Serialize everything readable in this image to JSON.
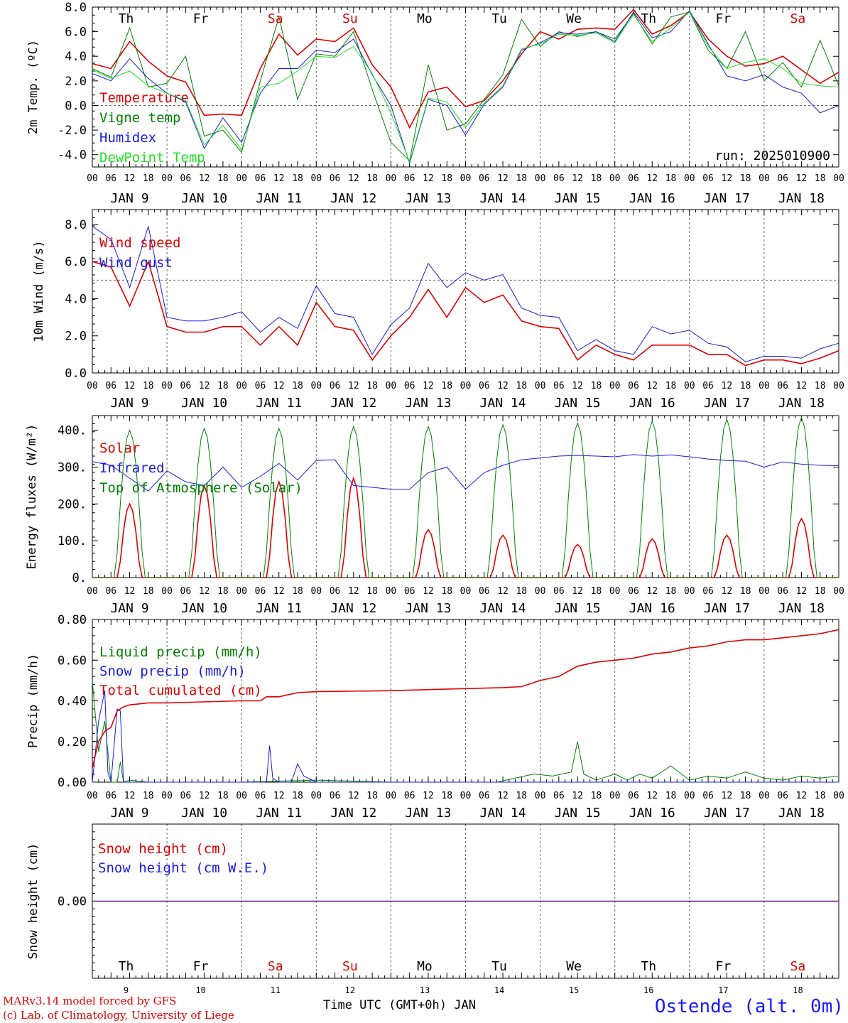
{
  "colors": {
    "red": "#e00000",
    "green": "#008000",
    "blue": "#1a1ae0",
    "lightgreen": "#20e020",
    "weekend": "#e00000",
    "text": "#000000"
  },
  "footer": {
    "model": "MARv3.14 model forced by GFS",
    "credit": "(c) Lab. of Climatology, University of Liege",
    "time_label": "Time UTC (GMT+0h) JAN",
    "station": "Ostende (alt. 0m)"
  },
  "hour_ticks": [
    "00",
    "06",
    "12",
    "18"
  ],
  "date_labels": [
    "JAN  9",
    "JAN 10",
    "JAN 11",
    "JAN 12",
    "JAN 13",
    "JAN 14",
    "JAN 15",
    "JAN 16",
    "JAN 17",
    "JAN 18"
  ],
  "days": [
    {
      "abbr": "Th",
      "num": "9",
      "weekend": false
    },
    {
      "abbr": "Fr",
      "num": "10",
      "weekend": false
    },
    {
      "abbr": "Sa",
      "num": "11",
      "weekend": true
    },
    {
      "abbr": "Su",
      "num": "12",
      "weekend": true
    },
    {
      "abbr": "Mo",
      "num": "13",
      "weekend": false
    },
    {
      "abbr": "Tu",
      "num": "14",
      "weekend": false
    },
    {
      "abbr": "We",
      "num": "15",
      "weekend": false
    },
    {
      "abbr": "Th",
      "num": "16",
      "weekend": false
    },
    {
      "abbr": "Fr",
      "num": "17",
      "weekend": false
    },
    {
      "abbr": "Sa",
      "num": "18",
      "weekend": true
    }
  ],
  "chart_data": [
    {
      "type": "line",
      "ylabel": "2m Temp. (ºC)",
      "ylim": [
        -5,
        8
      ],
      "yticks": [
        "8.0",
        "6.0",
        "4.0",
        "2.0",
        "0.0",
        "-2.0",
        "-4.0"
      ],
      "ref_line": 0,
      "annotation": "run: 2025010900",
      "x_unit": "hours from JAN 9 00 UTC",
      "series": [
        {
          "name": "Temperature",
          "color": "red",
          "x": [
            0,
            6,
            12,
            18,
            24,
            30,
            36,
            42,
            48,
            54,
            60,
            66,
            72,
            78,
            84,
            90,
            96,
            102,
            108,
            114,
            120,
            126,
            132,
            138,
            144,
            150,
            156,
            162,
            168,
            174,
            180,
            186,
            192,
            198,
            204,
            210,
            216,
            222,
            228,
            234,
            240
          ],
          "values": [
            3.4,
            3.0,
            5.2,
            3.6,
            2.4,
            1.9,
            -0.8,
            -0.7,
            -0.8,
            3.0,
            5.8,
            4.1,
            5.4,
            5.2,
            6.3,
            3.3,
            1.5,
            -1.8,
            1.1,
            1.5,
            -0.1,
            0.4,
            2.0,
            4.2,
            6.0,
            5.4,
            6.2,
            6.3,
            6.2,
            7.8,
            5.8,
            6.5,
            7.6,
            5.4,
            4.0,
            3.2,
            3.4,
            4.0,
            2.9,
            1.8,
            2.7
          ]
        },
        {
          "name": "Vigne temp",
          "color": "green",
          "x": [
            0,
            6,
            12,
            18,
            24,
            30,
            36,
            42,
            48,
            54,
            60,
            66,
            72,
            78,
            84,
            90,
            96,
            102,
            108,
            114,
            120,
            126,
            132,
            138,
            144,
            150,
            156,
            162,
            168,
            174,
            180,
            186,
            192,
            198,
            204,
            210,
            216,
            222,
            228,
            234,
            240
          ],
          "values": [
            3.0,
            2.3,
            6.3,
            1.5,
            1.8,
            4.0,
            -2.5,
            -2.0,
            -3.8,
            2.0,
            7.2,
            0.5,
            4.2,
            4.0,
            6.0,
            1.3,
            -3.0,
            -4.5,
            3.3,
            -2.0,
            -1.5,
            0.5,
            2.5,
            7.0,
            4.8,
            6.0,
            5.6,
            6.0,
            5.4,
            7.5,
            5.0,
            7.2,
            7.6,
            4.5,
            3.0,
            6.0,
            2.0,
            3.5,
            1.5,
            5.3,
            1.6
          ]
        },
        {
          "name": "Humidex",
          "color": "blue",
          "x": [
            0,
            6,
            12,
            18,
            24,
            30,
            36,
            42,
            48,
            54,
            60,
            66,
            72,
            78,
            84,
            90,
            96,
            102,
            108,
            114,
            120,
            126,
            132,
            138,
            144,
            150,
            156,
            162,
            168,
            174,
            180,
            186,
            192,
            198,
            204,
            210,
            216,
            222,
            228,
            234,
            240
          ],
          "values": [
            2.6,
            2.0,
            3.8,
            2.2,
            1.0,
            0.3,
            -3.5,
            -1.0,
            -3.0,
            1.0,
            3.0,
            3.0,
            4.5,
            4.3,
            5.4,
            2.5,
            0.0,
            -4.7,
            0.5,
            0.0,
            -2.4,
            0.1,
            1.5,
            4.5,
            5.1,
            5.9,
            5.8,
            6.0,
            5.2,
            7.6,
            5.5,
            6.0,
            7.7,
            5.0,
            2.4,
            2.0,
            2.5,
            1.5,
            1.0,
            -0.6,
            0.0
          ]
        },
        {
          "name": "DewPoint Temp",
          "color": "lightgreen",
          "x": [
            0,
            6,
            12,
            18,
            24,
            30,
            36,
            42,
            48,
            54,
            60,
            66,
            72,
            78,
            84,
            90,
            96,
            102,
            108,
            114,
            120,
            126,
            132,
            138,
            144,
            150,
            156,
            162,
            168,
            174,
            180,
            186,
            192,
            198,
            204,
            210,
            216,
            222,
            228,
            234,
            240
          ],
          "values": [
            2.9,
            2.2,
            2.8,
            1.6,
            1.0,
            0.4,
            -3.2,
            -1.6,
            -3.6,
            1.5,
            1.8,
            2.8,
            4.0,
            3.9,
            4.8,
            2.6,
            -0.6,
            -4.6,
            0.6,
            0.3,
            -1.8,
            0.2,
            1.6,
            4.6,
            5.0,
            5.8,
            5.7,
            5.9,
            5.1,
            7.4,
            5.2,
            6.3,
            7.6,
            4.8,
            3.0,
            3.5,
            3.8,
            3.0,
            1.8,
            1.6,
            1.5
          ]
        }
      ]
    },
    {
      "type": "line",
      "ylabel": "10m Wind (m/s)",
      "ylim": [
        0,
        8.8
      ],
      "yticks": [
        "8.0",
        "6.0",
        "4.0",
        "2.0",
        "0.0"
      ],
      "ref_line": 5,
      "x_unit": "hours from JAN 9 00 UTC",
      "series": [
        {
          "name": "Wind speed",
          "color": "red",
          "x": [
            0,
            6,
            12,
            18,
            24,
            30,
            36,
            42,
            48,
            54,
            60,
            66,
            72,
            78,
            84,
            90,
            96,
            102,
            108,
            114,
            120,
            126,
            132,
            138,
            144,
            150,
            156,
            162,
            168,
            174,
            180,
            186,
            192,
            198,
            204,
            210,
            216,
            222,
            228,
            234,
            240
          ],
          "values": [
            6.0,
            5.7,
            3.6,
            6.0,
            2.5,
            2.2,
            2.2,
            2.5,
            2.5,
            1.5,
            2.5,
            1.5,
            3.8,
            2.5,
            2.3,
            0.7,
            2.0,
            3.0,
            4.5,
            3.0,
            4.6,
            3.8,
            4.2,
            2.8,
            2.5,
            2.4,
            0.7,
            1.5,
            1.0,
            0.7,
            1.5,
            1.5,
            1.5,
            1.0,
            1.0,
            0.4,
            0.7,
            0.7,
            0.5,
            0.8,
            1.2
          ]
        },
        {
          "name": "Wind gust",
          "color": "blue",
          "x": [
            0,
            6,
            12,
            18,
            24,
            30,
            36,
            42,
            48,
            54,
            60,
            66,
            72,
            78,
            84,
            90,
            96,
            102,
            108,
            114,
            120,
            126,
            132,
            138,
            144,
            150,
            156,
            162,
            168,
            174,
            180,
            186,
            192,
            198,
            204,
            210,
            216,
            222,
            228,
            234,
            240
          ],
          "values": [
            7.9,
            7.2,
            4.6,
            7.9,
            3.0,
            2.8,
            2.8,
            3.0,
            3.3,
            2.2,
            3.0,
            2.4,
            4.7,
            3.2,
            3.0,
            1.0,
            2.6,
            3.5,
            5.9,
            4.6,
            5.4,
            5.0,
            5.3,
            3.5,
            3.1,
            3.0,
            1.2,
            1.8,
            1.2,
            1.0,
            2.5,
            2.1,
            2.3,
            1.6,
            1.4,
            0.6,
            0.9,
            0.9,
            0.8,
            1.3,
            1.6
          ]
        }
      ]
    },
    {
      "type": "line",
      "ylabel": "Energy fluxes (W/m²)",
      "ylim": [
        0,
        440
      ],
      "yticks": [
        "400.",
        "300.",
        "200.",
        "100.",
        "0."
      ],
      "x_unit": "hours from JAN 9 00 UTC",
      "series": [
        {
          "name": "Solar",
          "color": "red",
          "peaks": [
            200,
            250,
            260,
            270,
            130,
            115,
            90,
            105,
            115,
            160
          ]
        },
        {
          "name": "Infrared",
          "color": "blue",
          "x": [
            0,
            6,
            12,
            18,
            24,
            30,
            36,
            42,
            48,
            54,
            60,
            66,
            72,
            78,
            84,
            90,
            96,
            102,
            108,
            114,
            120,
            126,
            132,
            138,
            144,
            150,
            156,
            162,
            168,
            174,
            180,
            186,
            192,
            198,
            204,
            210,
            216,
            222,
            228,
            234,
            240
          ],
          "values": [
            315,
            305,
            270,
            235,
            290,
            260,
            250,
            300,
            245,
            275,
            310,
            265,
            318,
            320,
            250,
            245,
            240,
            240,
            285,
            300,
            240,
            285,
            305,
            320,
            325,
            330,
            332,
            330,
            328,
            334,
            330,
            333,
            328,
            322,
            318,
            316,
            300,
            314,
            308,
            305,
            304
          ]
        },
        {
          "name": "Top of Atmosphere (Solar)",
          "color": "green",
          "peaks": [
            400,
            405,
            405,
            410,
            410,
            415,
            420,
            425,
            430,
            435
          ]
        }
      ]
    },
    {
      "type": "line",
      "ylabel": "Precip (mm/h)",
      "ylim": [
        0,
        0.8
      ],
      "yticks": [
        "0.80",
        "0.60",
        "0.40",
        "0.20",
        "0.00"
      ],
      "x_unit": "hours from JAN 9 00 UTC",
      "series": [
        {
          "name": "Liquid precip (mm/h)",
          "color": "green",
          "x": [
            0,
            2,
            4,
            6,
            8,
            9,
            10,
            12,
            18,
            24,
            48,
            72,
            96,
            120,
            130,
            136,
            142,
            148,
            154,
            156,
            158,
            162,
            168,
            172,
            176,
            180,
            186,
            192,
            198,
            204,
            210,
            216,
            222,
            228,
            234,
            240
          ],
          "values": [
            0.5,
            0.15,
            0.3,
            0.0,
            0.0,
            0.1,
            0.0,
            0.01,
            0.0,
            0.0,
            0.0,
            0.01,
            0.0,
            0.0,
            0.0,
            0.02,
            0.04,
            0.03,
            0.05,
            0.2,
            0.04,
            0.01,
            0.04,
            0.01,
            0.04,
            0.02,
            0.08,
            0.01,
            0.03,
            0.02,
            0.05,
            0.02,
            0.01,
            0.03,
            0.02,
            0.03
          ]
        },
        {
          "name": "Snow precip (mm/h)",
          "color": "blue",
          "x": [
            0,
            2,
            4,
            5,
            6,
            8,
            9,
            10,
            12,
            24,
            48,
            54,
            56,
            57,
            58,
            60,
            64,
            66,
            68,
            72,
            96,
            240
          ],
          "values": [
            0.0,
            0.3,
            0.45,
            0.05,
            0.0,
            0.36,
            0.35,
            0.0,
            0.0,
            0.0,
            0.0,
            0.0,
            0.0,
            0.18,
            0.02,
            0.0,
            0.0,
            0.09,
            0.03,
            0.0,
            0.0,
            0.0
          ]
        },
        {
          "name": "Total cumulated (cm)",
          "color": "red",
          "x": [
            0,
            2,
            4,
            6,
            8,
            10,
            12,
            18,
            24,
            48,
            54,
            56,
            60,
            66,
            72,
            96,
            120,
            132,
            138,
            144,
            150,
            156,
            162,
            168,
            174,
            180,
            186,
            192,
            198,
            204,
            210,
            216,
            222,
            228,
            234,
            240
          ],
          "values": [
            0.07,
            0.2,
            0.25,
            0.27,
            0.35,
            0.37,
            0.38,
            0.39,
            0.39,
            0.4,
            0.4,
            0.42,
            0.42,
            0.44,
            0.445,
            0.45,
            0.46,
            0.465,
            0.47,
            0.5,
            0.52,
            0.57,
            0.59,
            0.6,
            0.61,
            0.63,
            0.64,
            0.66,
            0.67,
            0.69,
            0.7,
            0.7,
            0.71,
            0.72,
            0.73,
            0.75
          ]
        }
      ]
    },
    {
      "type": "line",
      "ylabel": "Snow height (cm)",
      "ylim": [
        -1,
        1
      ],
      "yticks": [
        "0.00"
      ],
      "x_unit": "hours from JAN 9 00 UTC",
      "series": [
        {
          "name": "Snow height (cm)",
          "color": "red",
          "x": [
            0,
            240
          ],
          "values": [
            0,
            0
          ]
        },
        {
          "name": "Snow height (cm W.E.)",
          "color": "blue",
          "x": [
            0,
            240
          ],
          "values": [
            0,
            0
          ]
        }
      ]
    }
  ]
}
